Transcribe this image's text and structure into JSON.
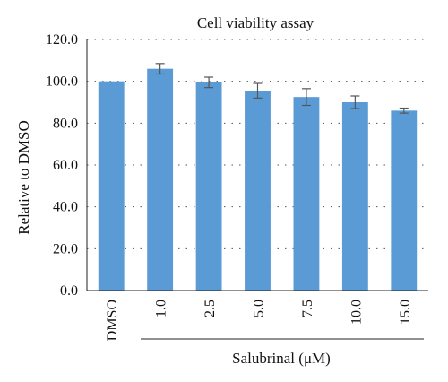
{
  "chart_data": {
    "type": "bar",
    "title": "Cell viability assay",
    "ylabel": "Relative to DMSO",
    "xlabel": "Salubrinal (μM)",
    "categories": [
      "DMSO",
      "1.0",
      "2.5",
      "5.0",
      "7.5",
      "10.0",
      "15.0"
    ],
    "values": [
      100.0,
      106.0,
      99.5,
      95.5,
      92.5,
      90.0,
      86.0
    ],
    "errors": [
      0.0,
      2.5,
      2.5,
      3.5,
      4.0,
      3.0,
      1.2
    ],
    "ylim": [
      0,
      120
    ],
    "yticks": [
      0,
      20,
      40,
      60,
      80,
      100,
      120
    ],
    "ytick_labels": [
      "0.0",
      "20.0",
      "40.0",
      "60.0",
      "80.0",
      "100.0",
      "120.0"
    ],
    "grid": "horizontal dotted",
    "bar_color": "#5b9bd5"
  }
}
